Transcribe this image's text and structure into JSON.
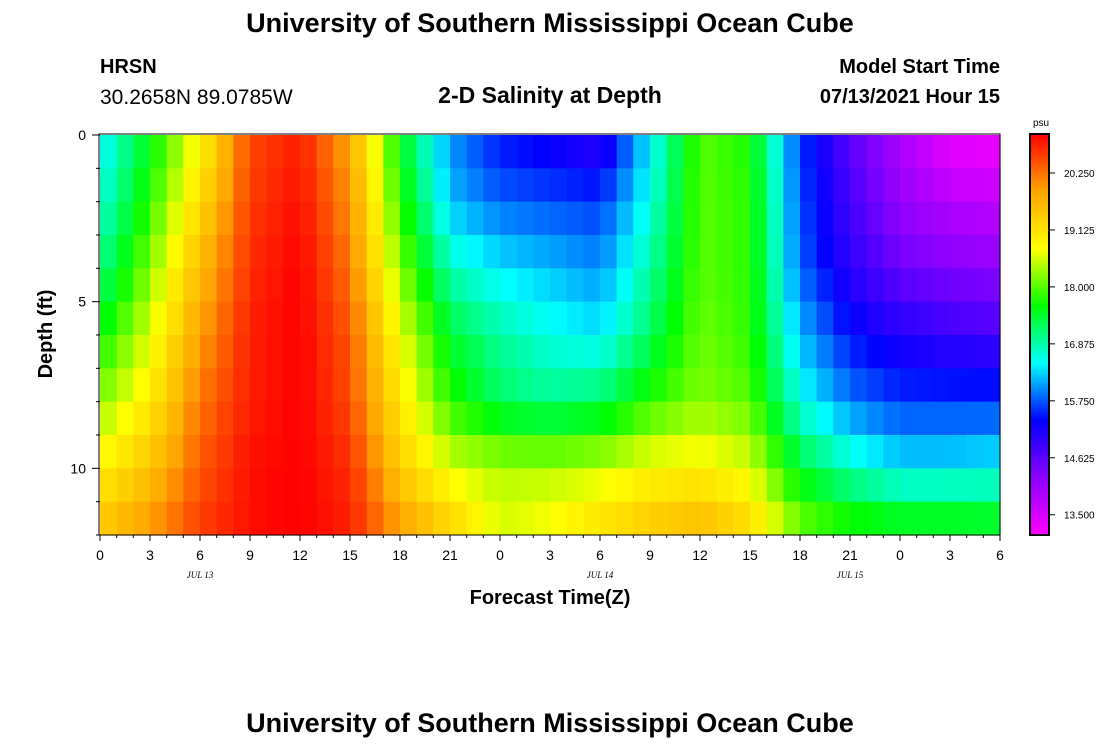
{
  "header": {
    "title": "University of Southern Mississippi Ocean Cube",
    "station": "HRSN",
    "coords": "30.2658N  89.0785W",
    "plot_title": "2-D Salinity at Depth",
    "model_label": "Model Start Time",
    "model_value": "07/13/2021 Hour 15"
  },
  "footer": {
    "title": "University of Southern Mississippi Ocean Cube"
  },
  "colors": {
    "colormap": [
      "#ff00ff",
      "#8b00ff",
      "#0000ff",
      "#00ffff",
      "#00ff00",
      "#ffff00",
      "#ffa500",
      "#ff0000"
    ]
  },
  "chart_data": {
    "type": "heatmap",
    "title": "2-D Salinity at Depth",
    "xlabel": "Forecast Time(Z)",
    "ylabel": "Depth (ft)",
    "x_tick_labels": [
      "0",
      "3",
      "6",
      "9",
      "12",
      "15",
      "18",
      "21",
      "0",
      "3",
      "6",
      "9",
      "12",
      "15",
      "18",
      "21",
      "0",
      "3",
      "6"
    ],
    "x_hours": [
      0,
      3,
      6,
      9,
      12,
      15,
      18,
      21,
      24,
      27,
      30,
      33,
      36,
      39,
      42,
      45,
      48,
      51,
      54
    ],
    "x_range_hours": [
      0,
      54
    ],
    "day_labels": [
      {
        "label": "JUL 13",
        "hour": 6
      },
      {
        "label": "JUL 14",
        "hour": 30
      },
      {
        "label": "JUL 15",
        "hour": 45
      }
    ],
    "y_tick_labels": [
      "0",
      "5",
      "10"
    ],
    "y_ticks": [
      0,
      5,
      10
    ],
    "y_range_ft": [
      0,
      12
    ],
    "colorbar": {
      "unit": "psu",
      "ticks": [
        "20.250",
        "19.125",
        "18.000",
        "16.875",
        "15.750",
        "14.625",
        "13.500"
      ],
      "tick_values": [
        20.25,
        19.125,
        18.0,
        16.875,
        15.75,
        14.625,
        13.5
      ],
      "range": [
        13.1,
        21.0
      ]
    },
    "z_min": 13.1,
    "z_max": 21.0,
    "grid_hours": [
      0,
      3,
      6,
      9,
      12,
      15,
      18,
      21,
      24,
      27,
      30,
      33,
      36,
      39,
      42,
      45,
      48,
      51,
      54
    ],
    "grid_depths": [
      0,
      2,
      4,
      6,
      8,
      10,
      12
    ],
    "salinity_psu": [
      [
        16.4,
        17.5,
        18.8,
        20.5,
        20.8,
        19.8,
        17.5,
        16.0,
        15.4,
        15.2,
        14.9,
        16.4,
        18.0,
        17.7,
        15.6,
        14.6,
        13.9,
        13.3,
        13.2
      ],
      [
        16.6,
        17.8,
        19.2,
        20.6,
        20.9,
        20.0,
        17.8,
        16.2,
        15.8,
        15.7,
        15.6,
        16.6,
        18.0,
        17.8,
        15.7,
        14.8,
        14.1,
        13.8,
        13.7
      ],
      [
        17.0,
        18.2,
        19.6,
        20.7,
        21.0,
        20.2,
        18.2,
        16.8,
        16.4,
        16.2,
        16.0,
        16.9,
        18.0,
        17.8,
        15.8,
        15.0,
        14.5,
        14.3,
        14.2
      ],
      [
        17.6,
        18.6,
        19.9,
        20.8,
        21.0,
        20.4,
        18.7,
        17.4,
        16.9,
        16.6,
        16.4,
        17.2,
        18.1,
        17.8,
        16.2,
        15.4,
        15.1,
        14.9,
        14.8
      ],
      [
        18.2,
        19.0,
        20.2,
        20.8,
        21.0,
        20.5,
        19.0,
        17.8,
        17.2,
        17.0,
        17.2,
        17.8,
        18.2,
        18.0,
        16.6,
        15.9,
        15.6,
        15.6,
        15.6
      ],
      [
        18.9,
        19.5,
        20.4,
        20.9,
        21.0,
        20.7,
        19.4,
        18.6,
        18.4,
        18.4,
        18.5,
        18.8,
        18.9,
        18.6,
        17.4,
        16.8,
        16.4,
        16.4,
        16.5
      ],
      [
        19.5,
        20.0,
        20.6,
        20.9,
        21.0,
        20.8,
        20.0,
        19.4,
        18.6,
        18.8,
        19.2,
        19.5,
        19.7,
        19.3,
        18.2,
        17.9,
        17.8,
        17.8,
        17.7
      ]
    ]
  }
}
